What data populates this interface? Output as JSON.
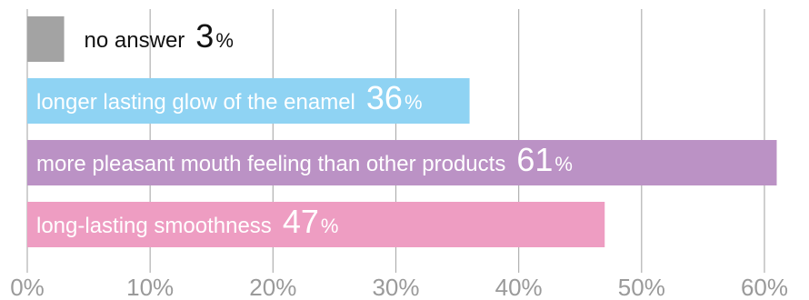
{
  "chart_data": {
    "type": "bar",
    "orientation": "horizontal",
    "categories": [
      "no answer",
      "longer lasting glow of the enamel",
      "more pleasant mouth feeling than other products",
      "long-lasting smoothness"
    ],
    "values": [
      3,
      36,
      61,
      47
    ],
    "value_unit": "%",
    "bar_colors": [
      "#a3a3a3",
      "#8fd3f3",
      "#bb92c5",
      "#ee9dc2"
    ],
    "label_colors": [
      "#111111",
      "#ffffff",
      "#ffffff",
      "#ffffff"
    ],
    "xlim": [
      0,
      62
    ],
    "xticks": [
      0,
      10,
      20,
      30,
      40,
      50,
      60
    ],
    "xtick_labels": [
      "0%",
      "10%",
      "20%",
      "30%",
      "40%",
      "50%",
      "60%"
    ],
    "grid": "vertical",
    "grid_color": "#b0b0b0",
    "title": "",
    "xlabel": "",
    "ylabel": ""
  }
}
